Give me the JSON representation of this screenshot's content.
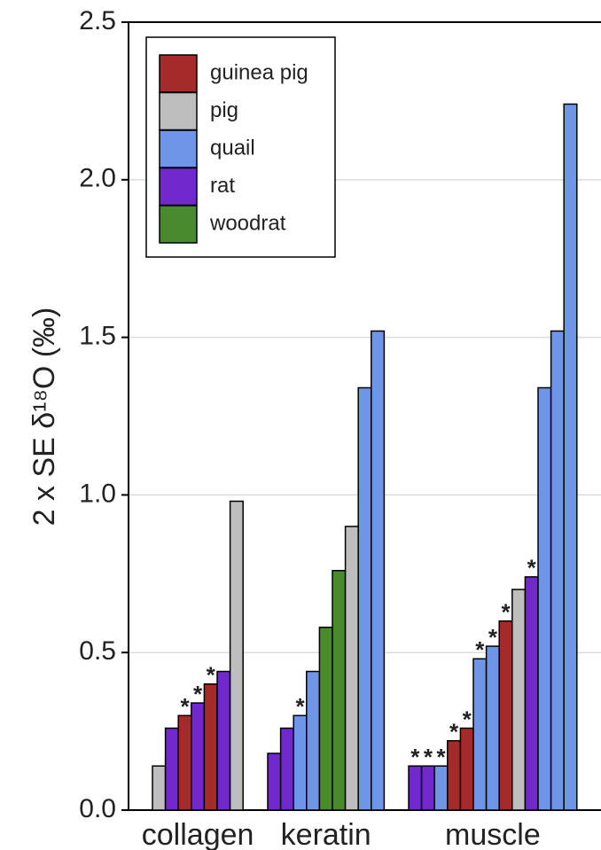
{
  "chart_data": {
    "type": "grouped-bar",
    "ylabel": "2 x SE δ¹⁸O (‰)",
    "ylim": [
      0,
      2.5
    ],
    "yticks": [
      {
        "value": 0,
        "label": "0.0"
      },
      0.5,
      {
        "value": 1,
        "label": "1.0"
      },
      1.5,
      {
        "value": 2,
        "label": "2.0"
      },
      2.5
    ],
    "grid": true,
    "legend": "top-left",
    "series": [
      {
        "name": "guinea pig",
        "color": "#a52a2a"
      },
      {
        "name": "pig",
        "color": "#bebebe"
      },
      {
        "name": "quail",
        "color": "#6f95e8"
      },
      {
        "name": "rat",
        "color": "#7128cc"
      },
      {
        "name": "woodrat",
        "color": "#4a8a2e"
      }
    ],
    "groups": [
      {
        "name": "collagen",
        "bars": [
          {
            "series": 1,
            "value": 0.14
          },
          {
            "series": 3,
            "value": 0.26
          },
          {
            "series": 0,
            "value": 0.3,
            "annotation": "*"
          },
          {
            "series": 3,
            "value": 0.34,
            "annotation": "*"
          },
          {
            "series": 0,
            "value": 0.4,
            "annotation": "*"
          },
          {
            "series": 3,
            "value": 0.44
          },
          {
            "series": 1,
            "value": 0.98
          }
        ]
      },
      {
        "name": "keratin",
        "bars": [
          {
            "series": 3,
            "value": 0.18
          },
          {
            "series": 3,
            "value": 0.26
          },
          {
            "series": 2,
            "value": 0.3,
            "annotation": "*"
          },
          {
            "series": 2,
            "value": 0.44
          },
          {
            "series": 4,
            "value": 0.58
          },
          {
            "series": 4,
            "value": 0.76
          },
          {
            "series": 1,
            "value": 0.9
          },
          {
            "series": 2,
            "value": 1.34
          },
          {
            "series": 2,
            "value": 1.52
          }
        ]
      },
      {
        "name": "muscle",
        "bars": [
          {
            "series": 3,
            "value": 0.14,
            "annotation": "*"
          },
          {
            "series": 3,
            "value": 0.14,
            "annotation": "*"
          },
          {
            "series": 2,
            "value": 0.14,
            "annotation": "*"
          },
          {
            "series": 0,
            "value": 0.22,
            "annotation": "*"
          },
          {
            "series": 0,
            "value": 0.26,
            "annotation": "*"
          },
          {
            "series": 2,
            "value": 0.48,
            "annotation": "*"
          },
          {
            "series": 2,
            "value": 0.52,
            "annotation": "*"
          },
          {
            "series": 0,
            "value": 0.6,
            "annotation": "*"
          },
          {
            "series": 1,
            "value": 0.7
          },
          {
            "series": 3,
            "value": 0.74,
            "annotation": "*"
          },
          {
            "series": 2,
            "value": 1.34
          },
          {
            "series": 2,
            "value": 1.52
          },
          {
            "series": 2,
            "value": 2.24
          }
        ]
      }
    ]
  }
}
